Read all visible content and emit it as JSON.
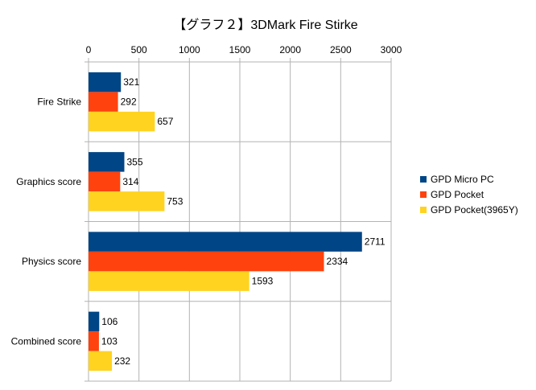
{
  "chart_data": {
    "type": "bar",
    "orientation": "horizontal",
    "title": "【グラフ２】3DMark Fire Stirke",
    "xlabel": "",
    "ylabel": "",
    "xlim": [
      0,
      3000
    ],
    "x_ticks": [
      0,
      500,
      1000,
      1500,
      2000,
      2500,
      3000
    ],
    "x_axis_position": "top",
    "grid": true,
    "legend_position": "right",
    "categories": [
      "Fire Strike",
      "Graphics score",
      "Physics score",
      "Combined score"
    ],
    "series": [
      {
        "name": "GPD Micro PC",
        "color": "#004586",
        "values": [
          321,
          355,
          2711,
          106
        ]
      },
      {
        "name": "GPD Pocket",
        "color": "#ff420e",
        "values": [
          292,
          314,
          2334,
          103
        ]
      },
      {
        "name": "GPD Pocket(3965Y)",
        "color": "#ffd320",
        "values": [
          657,
          753,
          1593,
          232
        ]
      }
    ]
  }
}
